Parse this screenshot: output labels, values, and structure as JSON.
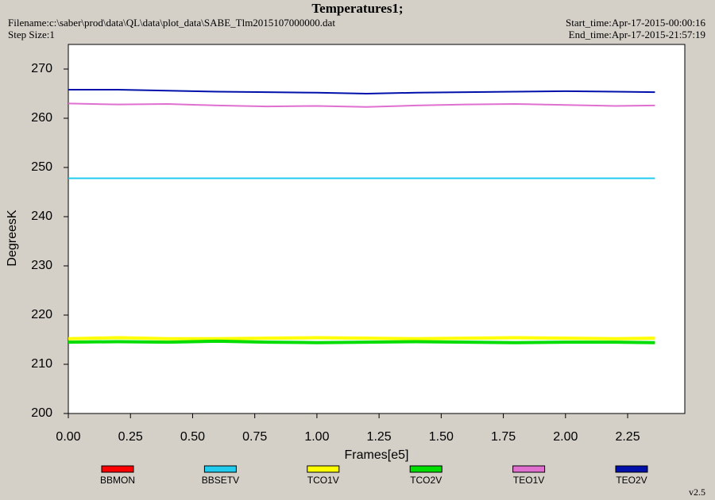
{
  "chart_data": {
    "type": "line",
    "title": "Temperatures1;",
    "filename": "Filename:c:\\saber\\prod\\data\\QL\\data\\plot_data\\SABE_Tlm2015107000000.dat",
    "step_size": "Step Size:1",
    "start_time": "Start_time:Apr-17-2015-00:00:16",
    "end_time": "End_time:Apr-17-2015-21:57:19",
    "xlabel": "Frames[e5]",
    "ylabel": "DegreesK",
    "version": "v2.5",
    "x": [
      0,
      0.2,
      0.4,
      0.6,
      0.8,
      1.0,
      1.2,
      1.4,
      1.6,
      1.8,
      2.0,
      2.2,
      2.36
    ],
    "series": [
      {
        "name": "BBMON",
        "color": "#ff0000",
        "values": [
          null,
          null,
          null,
          null,
          null,
          null,
          null,
          null,
          null,
          null,
          null,
          null,
          null
        ]
      },
      {
        "name": "BBSETV",
        "color": "#22ccee",
        "values": [
          247.8,
          247.8,
          247.8,
          247.8,
          247.8,
          247.8,
          247.8,
          247.8,
          247.8,
          247.8,
          247.8,
          247.8,
          247.8
        ]
      },
      {
        "name": "TCO1V",
        "color": "#ffff00",
        "values": [
          215.2,
          215.4,
          215.2,
          215.2,
          215.3,
          215.4,
          215.3,
          215.2,
          215.3,
          215.4,
          215.3,
          215.2,
          215.3
        ]
      },
      {
        "name": "TCO2V",
        "color": "#00dd00",
        "values": [
          214.5,
          214.6,
          214.5,
          214.7,
          214.5,
          214.4,
          214.5,
          214.6,
          214.5,
          214.4,
          214.5,
          214.5,
          214.4
        ]
      },
      {
        "name": "TEO1V",
        "color": "#e070d0",
        "values": [
          263.0,
          262.8,
          262.9,
          262.6,
          262.4,
          262.5,
          262.3,
          262.6,
          262.8,
          262.9,
          262.7,
          262.5,
          262.6
        ]
      },
      {
        "name": "TEO2V",
        "color": "#0010aa",
        "values": [
          265.8,
          265.8,
          265.6,
          265.4,
          265.3,
          265.2,
          265.0,
          265.2,
          265.3,
          265.4,
          265.5,
          265.4,
          265.3
        ]
      }
    ],
    "xlim": [
      0,
      2.48
    ],
    "ylim": [
      200,
      275
    ],
    "xticks": [
      {
        "value": 0,
        "label": "0.00"
      },
      {
        "value": 0.25,
        "label": "0.25"
      },
      {
        "value": 0.5,
        "label": "0.50"
      },
      {
        "value": 0.75,
        "label": "0.75"
      },
      {
        "value": 1,
        "label": "1.00"
      },
      {
        "value": 1.25,
        "label": "1.25"
      },
      {
        "value": 1.5,
        "label": "1.50"
      },
      {
        "value": 1.75,
        "label": "1.75"
      },
      {
        "value": 2,
        "label": "2.00"
      },
      {
        "value": 2.25,
        "label": "2.25"
      }
    ],
    "yticks": [
      200,
      210,
      220,
      230,
      240,
      250,
      260,
      270
    ],
    "grid": false
  }
}
